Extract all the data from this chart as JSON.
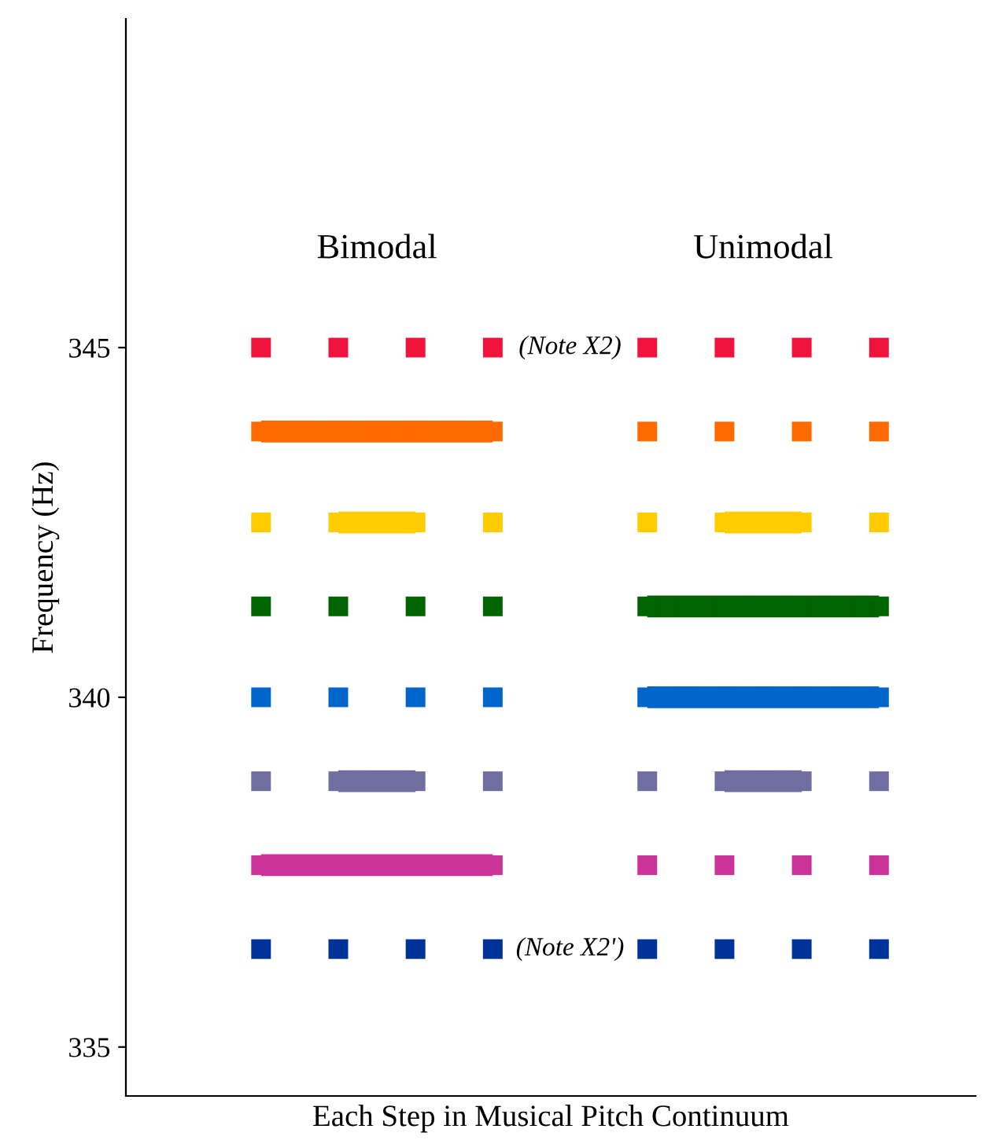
{
  "chart_data": {
    "type": "line",
    "xlabel": "Each Step in Musical Pitch Continuum",
    "ylabel": "Frequency (Hz)",
    "categories": [
      null,
      null,
      null,
      null,
      null,
      null,
      null,
      null,
      null,
      null,
      null,
      null,
      null,
      null,
      null,
      null,
      null,
      null,
      null,
      null,
      null,
      null
    ],
    "series": [
      {
        "type": "scatter",
        "color": "#f0143c",
        "values": [
          null,
          null,
          null,
          345,
          null,
          345,
          null,
          345,
          null,
          345,
          null,
          null,
          null,
          345,
          null,
          345,
          null,
          345,
          null,
          345,
          null,
          null
        ]
      },
      {
        "color": "#ff6a00",
        "values": [
          null,
          null,
          null,
          343.8,
          343.8,
          343.8,
          343.8,
          343.8,
          343.8,
          343.8,
          null,
          null,
          null,
          343.8,
          null,
          343.8,
          null,
          343.8,
          null,
          343.8,
          null,
          null
        ]
      },
      {
        "color": "#ffcc00",
        "values": [
          null,
          null,
          null,
          342.5,
          null,
          342.5,
          342.5,
          342.5,
          null,
          342.5,
          null,
          null,
          null,
          342.5,
          null,
          342.5,
          342.5,
          342.5,
          null,
          342.5,
          null,
          null
        ]
      },
      {
        "color": "#006400",
        "values": [
          null,
          null,
          null,
          341.3,
          null,
          341.3,
          null,
          341.3,
          null,
          341.3,
          null,
          null,
          null,
          341.3,
          341.3,
          341.3,
          341.3,
          341.3,
          341.3,
          341.3,
          null,
          null
        ]
      },
      {
        "color": "#0066cc",
        "values": [
          null,
          null,
          null,
          340,
          null,
          340,
          null,
          340,
          null,
          340,
          null,
          null,
          null,
          340,
          340,
          340,
          340,
          340,
          340,
          340,
          null,
          null
        ]
      },
      {
        "color": "#6e6ea0",
        "values": [
          null,
          null,
          null,
          338.8,
          null,
          338.8,
          338.8,
          338.8,
          null,
          338.8,
          null,
          null,
          null,
          338.8,
          null,
          338.8,
          338.8,
          338.8,
          null,
          338.8,
          null,
          null
        ]
      },
      {
        "color": "#cc3399",
        "values": [
          null,
          null,
          null,
          337.6,
          337.6,
          337.6,
          337.6,
          337.6,
          337.6,
          337.6,
          null,
          null,
          null,
          337.6,
          null,
          337.6,
          null,
          337.6,
          null,
          337.6,
          null,
          null
        ]
      },
      {
        "type": "scatter",
        "color": "#003399",
        "values": [
          null,
          null,
          null,
          336.4,
          null,
          336.4,
          null,
          336.4,
          null,
          336.4,
          null,
          null,
          null,
          336.4,
          null,
          336.4,
          null,
          336.4,
          null,
          336.4,
          null,
          null
        ]
      }
    ],
    "ylim": [
      334.3,
      349.7
    ],
    "yticks": [
      335,
      340,
      345
    ],
    "tick_labels": "y",
    "marker": "square",
    "line_style": "solid",
    "grid": false,
    "legend": false,
    "annotations": [
      "Bimodal",
      "Unimodal",
      "(Note X2)",
      "(Note X2')"
    ]
  }
}
